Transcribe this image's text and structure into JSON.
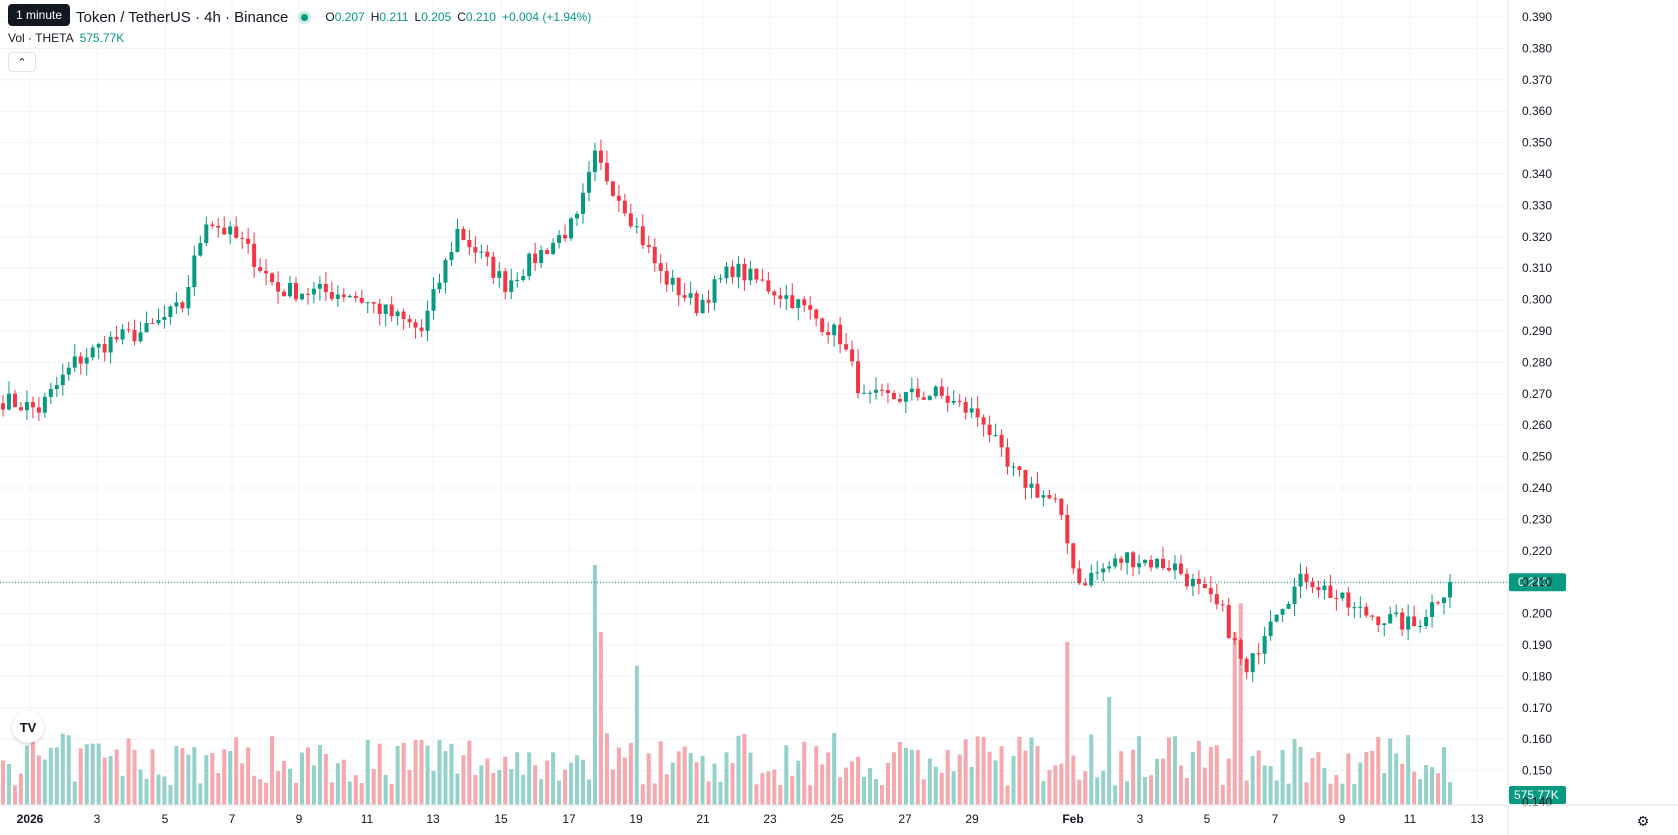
{
  "header": {
    "symbol_title": "Token / TetherUS · 4h · Binance",
    "tooltip": "1 minute",
    "ohlc": {
      "o_label": "O",
      "o": "0.207",
      "h_label": "H",
      "h": "0.211",
      "l_label": "L",
      "l": "0.205",
      "c_label": "C",
      "c": "0.210",
      "change": "+0.004 (+1.94%)"
    },
    "volume_label": "Vol · THETA",
    "volume_value": "575.77K"
  },
  "colors": {
    "up": "#089981",
    "down": "#f23645",
    "up_volume": "#94d1c8",
    "down_volume": "#f5a8ad",
    "grid": "#f0f3fa",
    "price_line": "#089981"
  },
  "icons": {
    "collapse": "chevron-up-icon",
    "logo": "tradingview-logo-icon",
    "settings": "gear-icon"
  },
  "chart_data": {
    "type": "candlestick",
    "title": "",
    "y_axis": {
      "ticks": [
        "0.390",
        "0.380",
        "0.370",
        "0.360",
        "0.350",
        "0.340",
        "0.330",
        "0.320",
        "0.310",
        "0.300",
        "0.290",
        "0.280",
        "0.270",
        "0.260",
        "0.250",
        "0.240",
        "0.230",
        "0.220",
        "0.210",
        "0.200",
        "0.190",
        "0.180",
        "0.170",
        "0.160",
        "0.150",
        "0.140"
      ],
      "range": [
        0.14,
        0.39
      ],
      "last_price_label": "0.210",
      "last_price": 0.21,
      "volume_label": "575.77K"
    },
    "x_axis": {
      "ticks": [
        "2026",
        "3",
        "5",
        "7",
        "9",
        "11",
        "13",
        "15",
        "17",
        "19",
        "21",
        "23",
        "25",
        "27",
        "29",
        "Feb",
        "3",
        "5",
        "7",
        "9",
        "11",
        "13"
      ]
    },
    "grid": true,
    "interval": "4h",
    "series_anchors_close": [
      {
        "bar": 0,
        "close": 0.268
      },
      {
        "bar": 6,
        "close": 0.265
      },
      {
        "bar": 12,
        "close": 0.28
      },
      {
        "bar": 18,
        "close": 0.287
      },
      {
        "bar": 24,
        "close": 0.29
      },
      {
        "bar": 30,
        "close": 0.298
      },
      {
        "bar": 34,
        "close": 0.326
      },
      {
        "bar": 40,
        "close": 0.318
      },
      {
        "bar": 46,
        "close": 0.303
      },
      {
        "bar": 58,
        "close": 0.302
      },
      {
        "bar": 70,
        "close": 0.29
      },
      {
        "bar": 76,
        "close": 0.322
      },
      {
        "bar": 84,
        "close": 0.305
      },
      {
        "bar": 96,
        "close": 0.325
      },
      {
        "bar": 99,
        "close": 0.345
      },
      {
        "bar": 104,
        "close": 0.33
      },
      {
        "bar": 110,
        "close": 0.308
      },
      {
        "bar": 116,
        "close": 0.298
      },
      {
        "bar": 122,
        "close": 0.31
      },
      {
        "bar": 132,
        "close": 0.3
      },
      {
        "bar": 140,
        "close": 0.288
      },
      {
        "bar": 144,
        "close": 0.268
      },
      {
        "bar": 156,
        "close": 0.27
      },
      {
        "bar": 164,
        "close": 0.262
      },
      {
        "bar": 168,
        "close": 0.246
      },
      {
        "bar": 176,
        "close": 0.235
      },
      {
        "bar": 180,
        "close": 0.21
      },
      {
        "bar": 188,
        "close": 0.218
      },
      {
        "bar": 196,
        "close": 0.215
      },
      {
        "bar": 204,
        "close": 0.2
      },
      {
        "bar": 208,
        "close": 0.18
      },
      {
        "bar": 212,
        "close": 0.2
      },
      {
        "bar": 218,
        "close": 0.212
      },
      {
        "bar": 226,
        "close": 0.201
      },
      {
        "bar": 236,
        "close": 0.196
      },
      {
        "bar": 242,
        "close": 0.21
      }
    ],
    "volume_anchors": [
      {
        "bar": 99,
        "volume": 1.0
      },
      {
        "bar": 100,
        "volume": 0.72
      },
      {
        "bar": 106,
        "volume": 0.58
      },
      {
        "bar": 178,
        "volume": 0.68
      },
      {
        "bar": 185,
        "volume": 0.45
      },
      {
        "bar": 206,
        "volume": 0.72
      },
      {
        "bar": 207,
        "volume": 0.84
      }
    ]
  }
}
